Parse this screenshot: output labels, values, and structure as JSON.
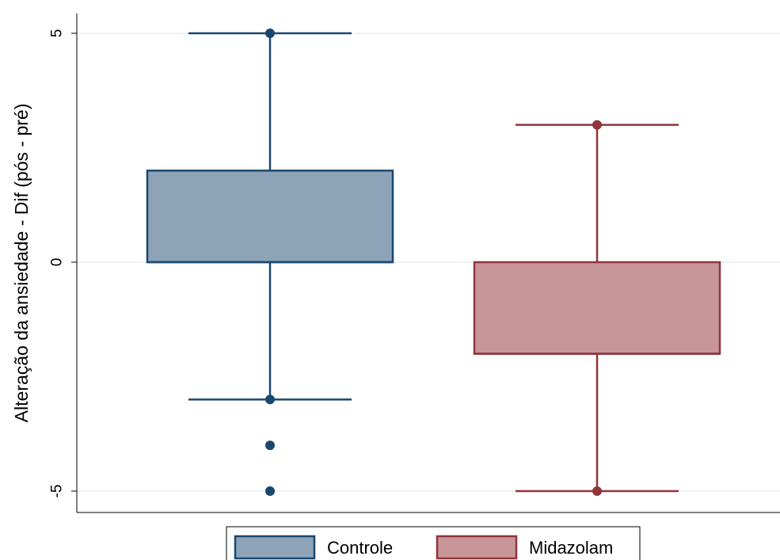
{
  "chart_data": {
    "type": "box",
    "title": "",
    "xlabel": "",
    "ylabel": "Alteração da ansiedade - Dif (pós - pré)",
    "ylim": [
      -5.4,
      5.55
    ],
    "yticks": [
      5,
      0,
      -5
    ],
    "ytick_labels": [
      "5",
      "0",
      "-5"
    ],
    "grid": true,
    "legend_position": "bottom-center",
    "series": [
      {
        "name": "Controle",
        "min": -3,
        "q1": 0,
        "median": 0,
        "q3": 2,
        "max": 5,
        "outliers": [
          -4,
          -5
        ],
        "endpoint_markers": [
          5,
          -3
        ],
        "fill": "#8da3b8",
        "stroke": "#1a476f"
      },
      {
        "name": "Midazolam",
        "min": -5,
        "q1": -2,
        "median": -2,
        "q3": 0,
        "max": 3,
        "outliers": [],
        "endpoint_markers": [
          3,
          -5
        ],
        "fill": "#c89598",
        "stroke": "#90353b"
      }
    ]
  }
}
